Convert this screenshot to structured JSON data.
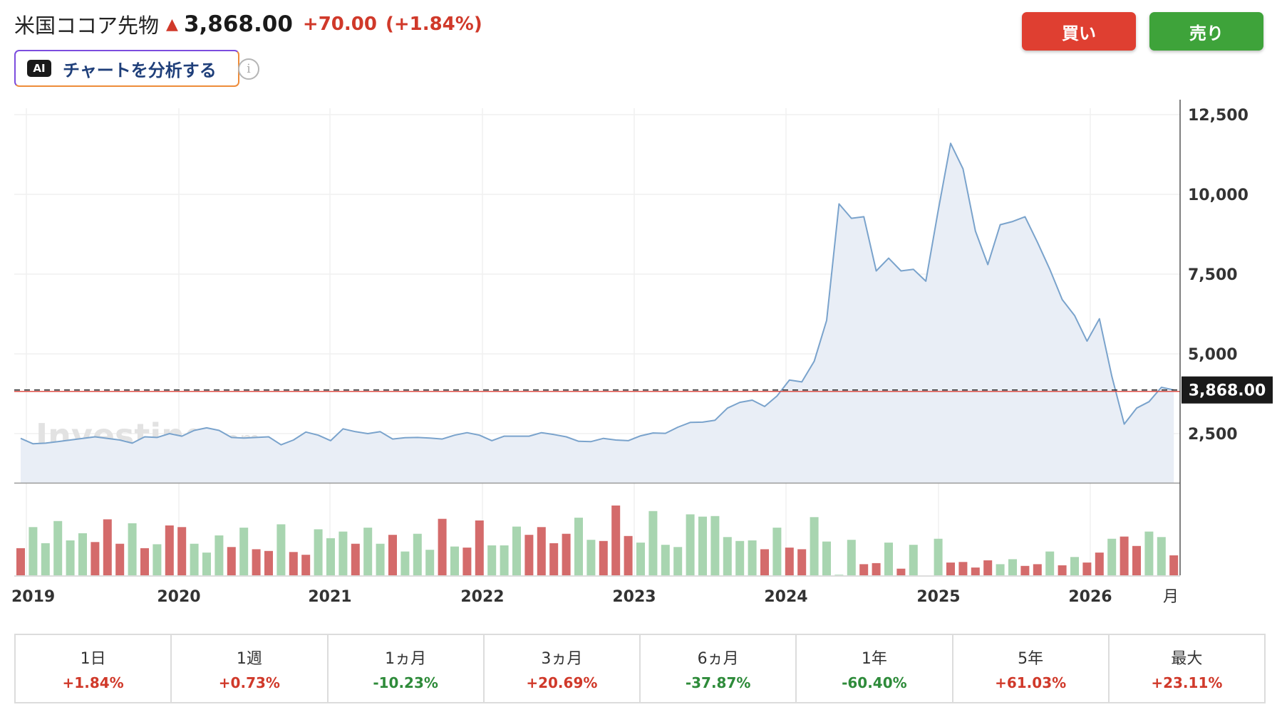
{
  "header": {
    "title": "米国ココア先物",
    "price": "3,868.00",
    "change": "+70.00",
    "change_pct": "(+1.84%)"
  },
  "ai_button": {
    "badge": "AI",
    "label": "チャートを分析する"
  },
  "info_icon": "i",
  "buttons": {
    "buy": "買い",
    "sell": "売り"
  },
  "colors": {
    "up": "#d0392a",
    "down": "#2e8b3a",
    "line": "#7aa3cc",
    "area": "#e9eef6",
    "vol_up": "#a8d5b0",
    "vol_down": "#d46b6b"
  },
  "watermark": {
    "main": "Investing",
    "suffix": ".com"
  },
  "chart_data": {
    "type": "area",
    "x_start": "2019-01",
    "xaxis_ticks": [
      "2019",
      "2020",
      "2021",
      "2022",
      "2023",
      "2024",
      "2025",
      "2026"
    ],
    "xaxis_unit": "月",
    "yaxis_ticks": [
      "12,500",
      "10,000",
      "7,500",
      "5,000",
      "2,500"
    ],
    "ylim": [
      0,
      12500
    ],
    "current_price_label": "3,868.00",
    "current_price": 3868,
    "series": [
      {
        "values": [
          2350,
          2180,
          2200,
          2250,
          2300,
          2350,
          2400,
          2350,
          2300,
          2200,
          2400,
          2380,
          2500,
          2420,
          2600,
          2680,
          2600,
          2380,
          2360,
          2380,
          2400,
          2150,
          2300,
          2550,
          2450,
          2280,
          2650,
          2560,
          2500,
          2560,
          2330,
          2370,
          2380,
          2360,
          2330,
          2450,
          2530,
          2450,
          2280,
          2420,
          2420,
          2420,
          2530,
          2470,
          2400,
          2260,
          2250,
          2350,
          2300,
          2280,
          2430,
          2520,
          2510,
          2700,
          2850,
          2860,
          2920,
          3300,
          3480,
          3550,
          3350,
          3680,
          4180,
          4120,
          4770,
          6050,
          9700,
          9250,
          9300,
          7600,
          8000,
          7600,
          7650,
          7280,
          9500,
          11600,
          10800,
          8850,
          7800,
          9050,
          9150,
          9300,
          8500,
          7650,
          6700,
          6200,
          5400,
          6100,
          4300,
          2800,
          3300,
          3500,
          3950,
          3868
        ],
        "volume": [
          49,
          87,
          58,
          98,
          63,
          76,
          60,
          101,
          57,
          94,
          49,
          56,
          90,
          87,
          57,
          41,
          72,
          51,
          86,
          47,
          44,
          92,
          42,
          37,
          83,
          67,
          79,
          57,
          86,
          57,
          73,
          43,
          75,
          46,
          102,
          52,
          50,
          99,
          54,
          54,
          88,
          73,
          87,
          58,
          75,
          104,
          64,
          62,
          126,
          71,
          59,
          116,
          55,
          51,
          110,
          106,
          107,
          69,
          62,
          63,
          47,
          86,
          50,
          47,
          105,
          61,
          1,
          64,
          20,
          22,
          59,
          12,
          55,
          0,
          66,
          23,
          24,
          14,
          27,
          20,
          29,
          17,
          20,
          43,
          18,
          33,
          23,
          41,
          66,
          70,
          53,
          79,
          69,
          36
        ],
        "volume_up": [
          false,
          true,
          true,
          true,
          true,
          true,
          false,
          false,
          false,
          true,
          false,
          true,
          false,
          false,
          true,
          true,
          true,
          false,
          true,
          false,
          false,
          true,
          false,
          false,
          true,
          true,
          true,
          false,
          true,
          true,
          false,
          true,
          true,
          true,
          false,
          true,
          false,
          false,
          true,
          true,
          true,
          false,
          false,
          false,
          false,
          true,
          true,
          false,
          false,
          false,
          true,
          true,
          true,
          true,
          true,
          true,
          true,
          true,
          true,
          true,
          false,
          true,
          false,
          false,
          true,
          true,
          true,
          true,
          false,
          false,
          true,
          false,
          true,
          true,
          true,
          false,
          false,
          false,
          false,
          true,
          true,
          false,
          false,
          true,
          false,
          true,
          false,
          false,
          true,
          false,
          false,
          true,
          true,
          false
        ]
      }
    ]
  },
  "periods": [
    {
      "label": "1日",
      "value": "+1.84%",
      "dir": "pos"
    },
    {
      "label": "1週",
      "value": "+0.73%",
      "dir": "pos"
    },
    {
      "label": "1ヵ月",
      "value": "-10.23%",
      "dir": "neg"
    },
    {
      "label": "3ヵ月",
      "value": "+20.69%",
      "dir": "pos"
    },
    {
      "label": "6ヵ月",
      "value": "-37.87%",
      "dir": "neg"
    },
    {
      "label": "1年",
      "value": "-60.40%",
      "dir": "neg"
    },
    {
      "label": "5年",
      "value": "+61.03%",
      "dir": "pos"
    },
    {
      "label": "最大",
      "value": "+23.11%",
      "dir": "pos"
    }
  ]
}
